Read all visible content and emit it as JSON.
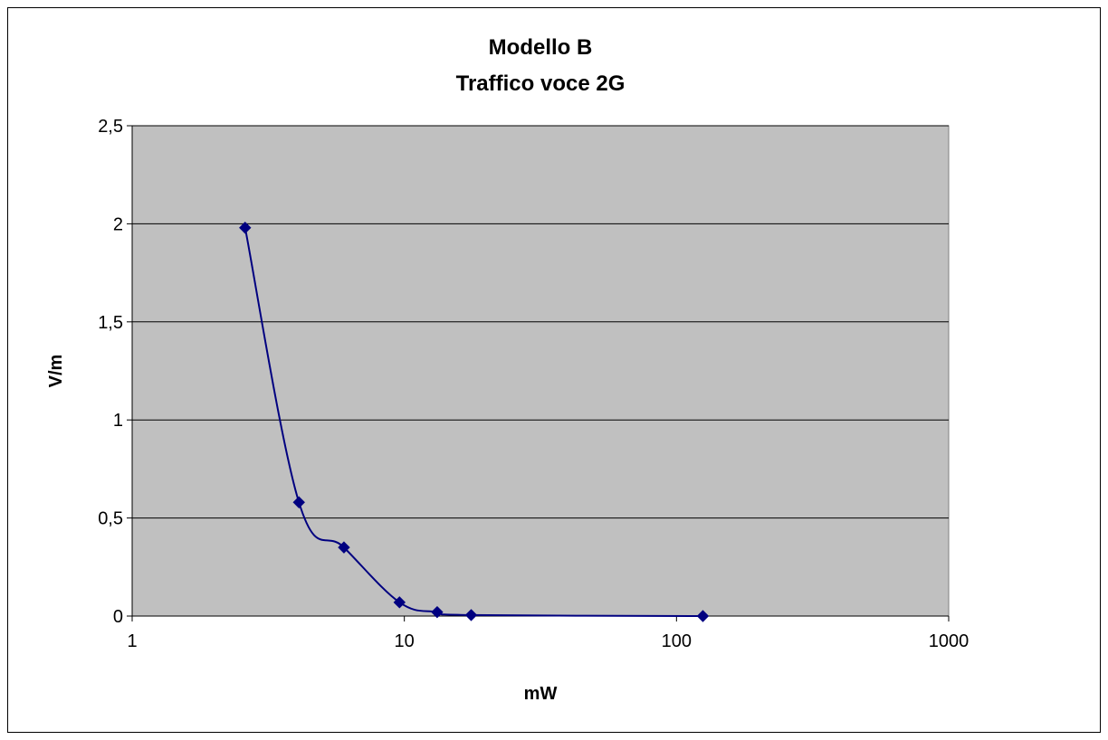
{
  "chart_data": {
    "type": "scatter",
    "title_lines": [
      "Modello B",
      "Traffico voce 2G"
    ],
    "xlabel": "mW",
    "ylabel": "V/m",
    "x_scale": "log",
    "xlim": [
      1,
      1000
    ],
    "ylim": [
      0,
      2.5
    ],
    "x_ticks": [
      1,
      10,
      100,
      1000
    ],
    "x_tick_labels": [
      "1",
      "10",
      "100",
      "1000"
    ],
    "y_ticks": [
      0,
      0.5,
      1,
      1.5,
      2,
      2.5
    ],
    "y_tick_labels": [
      "0",
      "0,5",
      "1",
      "1,5",
      "2",
      "2,5"
    ],
    "grid": "horizontal",
    "plot_background": "#c0c0c0",
    "series_color": "#000080",
    "line_style": "smoothed",
    "marker": "diamond",
    "series": [
      {
        "points": [
          [
            2.6,
            1.98
          ],
          [
            4.1,
            0.58
          ],
          [
            6.0,
            0.35
          ],
          [
            9.6,
            0.07
          ],
          [
            13.2,
            0.02
          ],
          [
            17.6,
            0.005
          ],
          [
            125,
            0.0
          ]
        ]
      }
    ]
  }
}
